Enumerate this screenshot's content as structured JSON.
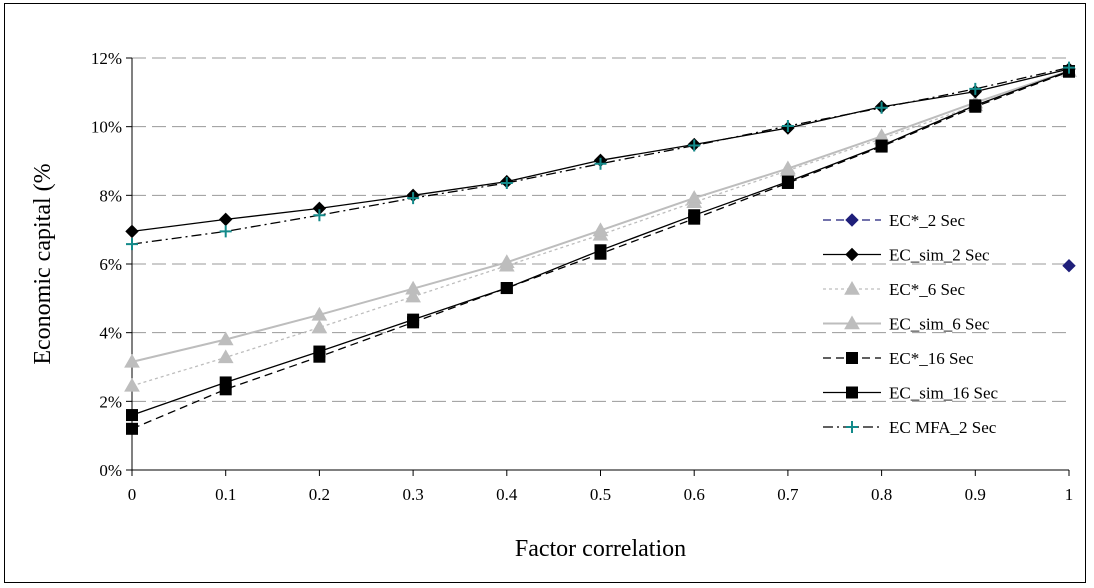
{
  "chart_data": {
    "type": "line",
    "title": "",
    "xlabel": "Factor correlation",
    "ylabel": "Economic capital (%",
    "x": [
      0,
      0.1,
      0.2,
      0.3,
      0.4,
      0.5,
      0.6,
      0.7,
      0.8,
      0.9,
      1
    ],
    "x_tick_labels": [
      "0",
      "0.1",
      "0.2",
      "0.3",
      "0.4",
      "0.5",
      "0.6",
      "0.7",
      "0.8",
      "0.9",
      "1"
    ],
    "xlim": [
      0,
      1
    ],
    "y_tick_labels": [
      "0%",
      "2%",
      "4%",
      "6%",
      "8%",
      "10%",
      "12%"
    ],
    "y_ticks": [
      0,
      2,
      4,
      6,
      8,
      10,
      12
    ],
    "ylim": [
      0,
      12
    ],
    "grid": "horizontal dashed",
    "legend_position": "right",
    "series": [
      {
        "name": "EC*_2 Sec",
        "values": [
          null,
          null,
          null,
          null,
          null,
          null,
          null,
          null,
          null,
          null,
          5.95
        ],
        "color": "#1f1f7a",
        "dash": "8,5",
        "marker": "diamond",
        "marker_color": "#1f1f7a"
      },
      {
        "name": "EC_sim_2 Sec",
        "values": [
          6.95,
          7.3,
          7.62,
          8.0,
          8.4,
          9.02,
          9.48,
          9.96,
          10.58,
          11.02,
          11.68
        ],
        "color": "#000000",
        "dash": "",
        "marker": "diamond",
        "marker_color": "#000000"
      },
      {
        "name": "EC*_6 Sec",
        "values": [
          2.45,
          3.28,
          4.15,
          5.05,
          5.95,
          6.85,
          7.8,
          8.72,
          9.65,
          10.62,
          11.62
        ],
        "color": "#bdbdbd",
        "dash": "3,3",
        "marker": "triangle",
        "marker_color": "#bdbdbd"
      },
      {
        "name": "EC_sim_6 Sec",
        "values": [
          3.15,
          3.8,
          4.52,
          5.28,
          6.05,
          6.98,
          7.92,
          8.78,
          9.72,
          10.7,
          11.62
        ],
        "color": "#bdbdbd",
        "dash": "",
        "marker": "triangle",
        "marker_color": "#bdbdbd"
      },
      {
        "name": "EC*_16 Sec",
        "values": [
          1.2,
          2.35,
          3.3,
          4.3,
          5.3,
          6.3,
          7.32,
          8.36,
          9.42,
          10.58,
          11.6
        ],
        "color": "#000000",
        "dash": "8,5",
        "marker": "square",
        "marker_color": "#000000"
      },
      {
        "name": "EC_sim_16 Sec",
        "values": [
          1.6,
          2.55,
          3.45,
          4.38,
          5.3,
          6.4,
          7.42,
          8.4,
          9.45,
          10.62,
          11.62
        ],
        "color": "#000000",
        "dash": "",
        "marker": "square",
        "marker_color": "#000000"
      },
      {
        "name": "EC MFA_2 Sec",
        "values": [
          6.58,
          6.95,
          7.42,
          7.92,
          8.36,
          8.92,
          9.45,
          10.02,
          10.55,
          11.1,
          11.72
        ],
        "color": "#000000",
        "dash": "10,4,2,4",
        "marker": "plus",
        "marker_color": "#138a8a"
      }
    ]
  }
}
